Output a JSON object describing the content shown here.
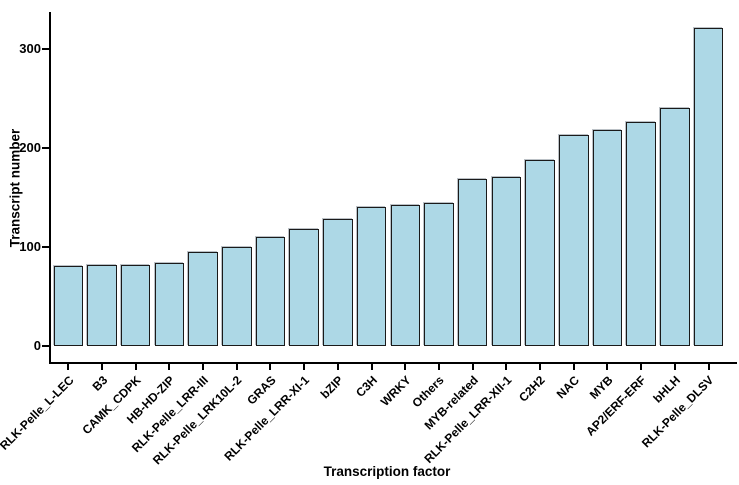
{
  "chart_data": {
    "type": "bar",
    "title": "",
    "xlabel": "Transcription factor",
    "ylabel": "Transcript number",
    "categories": [
      "RLK-Pelle_L-LEC",
      "B3",
      "CAMK_CDPK",
      "HB-HD-ZIP",
      "RLK-Pelle_LRR-III",
      "RLK-Pelle_LRK10L-2",
      "GRAS",
      "RLK-Pelle_LRR-XI-1",
      "bZIP",
      "C3H",
      "WRKY",
      "Others",
      "MYB-related",
      "RLK-Pelle_LRR-XII-1",
      "C2H2",
      "NAC",
      "MYB",
      "AP2/ERF-ERF",
      "bHLH",
      "RLK-Pelle_DLSV"
    ],
    "values": [
      81,
      82,
      82,
      84,
      95,
      100,
      110,
      118,
      128,
      140,
      142,
      144,
      169,
      171,
      188,
      213,
      218,
      226,
      240,
      321
    ],
    "yticks": [
      0,
      100,
      200,
      300
    ],
    "ylim": [
      0,
      337
    ],
    "grid": "off",
    "legend_position": "none",
    "bar_fill_color": "#ADD8E6",
    "bar_border_color": "#1a1a1a",
    "axis_color": "#000000"
  }
}
